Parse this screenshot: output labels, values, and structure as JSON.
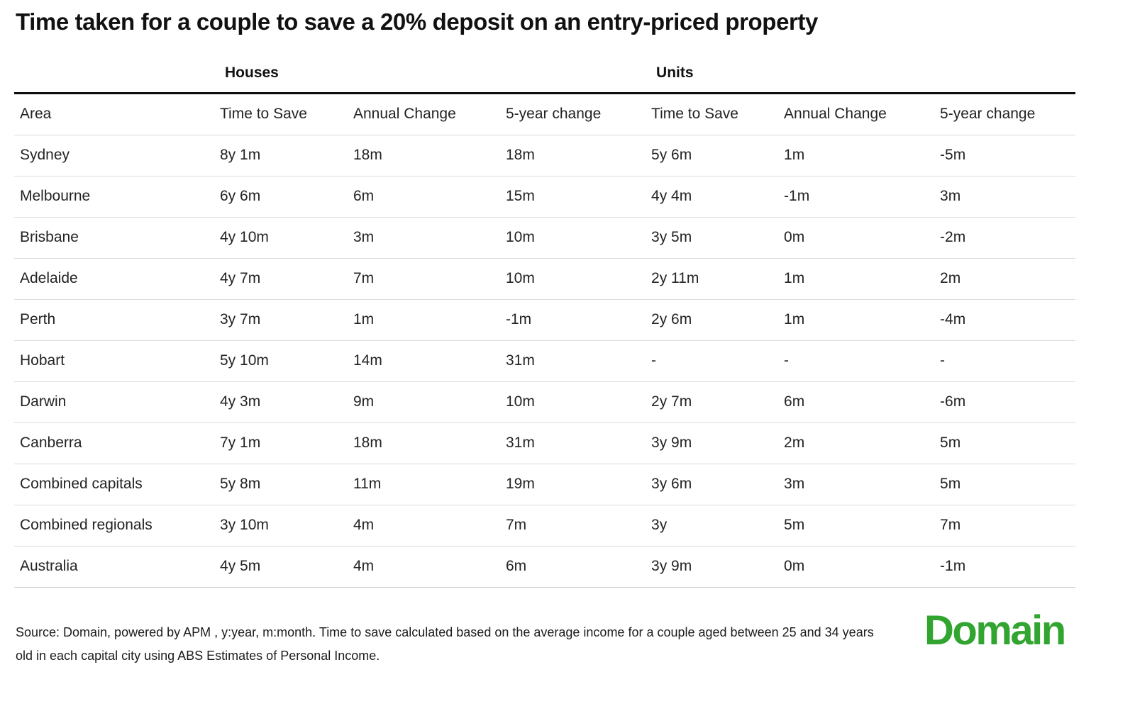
{
  "title": "Time taken for a couple to save a 20% deposit on an entry-priced property",
  "chart_data": {
    "type": "table",
    "title": "Time taken for a couple to save a 20% deposit on an entry-priced property",
    "column_groups": {
      "houses": "Houses",
      "units": "Units"
    },
    "columns": [
      "Area",
      "Time to Save",
      "Annual Change",
      "5-year change",
      "Time to Save",
      "Annual Change",
      "5-year change"
    ],
    "units_note": "y:year, m:month",
    "rows": [
      [
        "Sydney",
        "8y 1m",
        "18m",
        "18m",
        "5y 6m",
        "1m",
        "-5m"
      ],
      [
        "Melbourne",
        "6y 6m",
        "6m",
        "15m",
        "4y 4m",
        "-1m",
        "3m"
      ],
      [
        "Brisbane",
        "4y 10m",
        "3m",
        "10m",
        "3y 5m",
        "0m",
        "-2m"
      ],
      [
        "Adelaide",
        "4y 7m",
        "7m",
        "10m",
        "2y 11m",
        "1m",
        "2m"
      ],
      [
        "Perth",
        "3y 7m",
        "1m",
        "-1m",
        "2y 6m",
        "1m",
        "-4m"
      ],
      [
        "Hobart",
        "5y 10m",
        "14m",
        "31m",
        "-",
        "-",
        "-"
      ],
      [
        "Darwin",
        "4y 3m",
        "9m",
        "10m",
        "2y 7m",
        "6m",
        "-6m"
      ],
      [
        "Canberra",
        "7y 1m",
        "18m",
        "31m",
        "3y 9m",
        "2m",
        "5m"
      ],
      [
        "Combined capitals",
        "5y 8m",
        "11m",
        "19m",
        "3y 6m",
        "3m",
        "5m"
      ],
      [
        "Combined regionals",
        "3y 10m",
        "4m",
        "7m",
        "3y",
        "5m",
        "7m"
      ],
      [
        "Australia",
        "4y 5m",
        "4m",
        "6m",
        "3y 9m",
        "0m",
        "-1m"
      ]
    ]
  },
  "footer": {
    "source": "Source: Domain, powered by APM , y:year, m:month. Time to save calculated based on the average income for a couple aged between 25 and 34 years old in each capital city using ABS Estimates of Personal Income."
  },
  "logo": {
    "text": "Domain",
    "color": "#31a52f"
  }
}
